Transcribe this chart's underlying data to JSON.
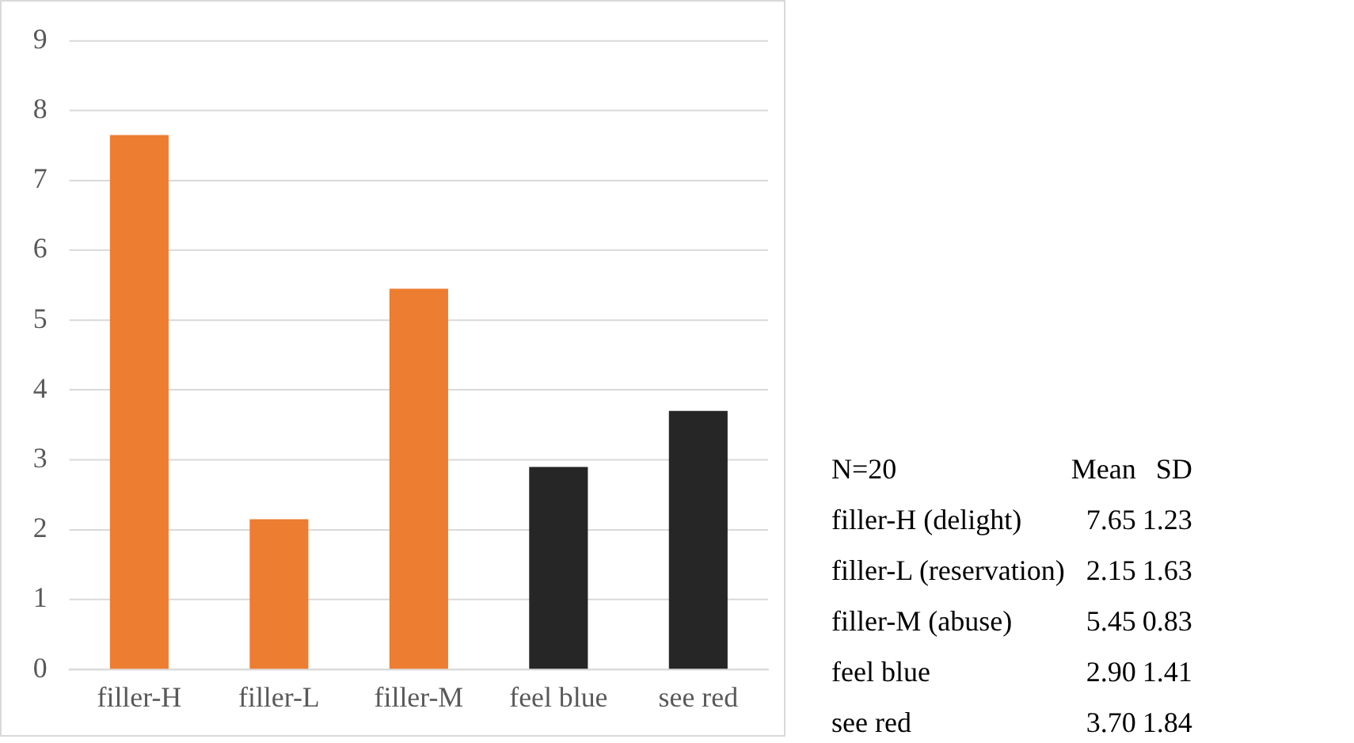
{
  "chart_data": {
    "type": "bar",
    "categories": [
      "filler-H",
      "filler-L",
      "filler-M",
      "feel blue",
      "see red"
    ],
    "values": [
      7.65,
      2.15,
      5.45,
      2.9,
      3.7
    ],
    "colors": [
      "#ed7d31",
      "#ed7d31",
      "#ed7d31",
      "#262626",
      "#262626"
    ],
    "annotations": [
      "N=20",
      "Mean",
      "SD",
      "filler-H (delight)",
      "7.65",
      "1.23",
      "filler-L (reservation)",
      "2.15",
      "1.63",
      "filler-M (abuse)",
      "5.45",
      "0.83",
      "feel blue",
      "2.90",
      "1.41",
      "see red",
      "3.70",
      "1.84"
    ],
    "ylim": [
      0,
      9
    ],
    "yticks": [
      0,
      1,
      2,
      3,
      4,
      5,
      6,
      7,
      8,
      9
    ],
    "grid": "y",
    "legend": false
  }
}
